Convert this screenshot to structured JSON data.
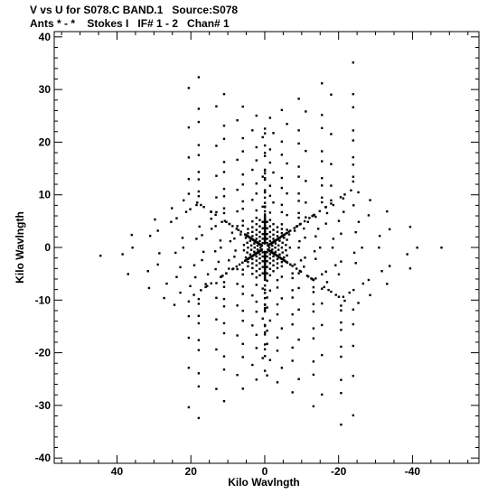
{
  "chart_data": {
    "type": "scatter",
    "title": "V vs U for S078.C BAND.1   Source:S078",
    "subtitle": "Ants * - *    Stokes I   IF# 1 - 2   Chan# 1",
    "xlabel": "Kilo Wavlngth",
    "ylabel": "Kilo Wavlngth",
    "xlim": [
      57,
      -58
    ],
    "ylim": [
      -41,
      41
    ],
    "x_reversed": true,
    "x_ticks": [
      40,
      20,
      0,
      -20,
      -40
    ],
    "x_tick_labels": [
      "40",
      "20",
      "0",
      "-20",
      "-40"
    ],
    "y_ticks": [
      40,
      30,
      20,
      10,
      0,
      -10,
      -20,
      -30,
      -40
    ],
    "y_tick_labels": [
      "40",
      "30",
      "20",
      "10",
      "0",
      "-10",
      "-20",
      "-30",
      "-40"
    ],
    "grid": false,
    "marker": "dot",
    "marker_color": "#000000",
    "pattern": "six-arm star (Y-shaped array uv coverage with conjugate points)",
    "arm_endpoints": [
      {
        "u": 0,
        "v": 24
      },
      {
        "u": 0,
        "v": -24
      },
      {
        "u": 28,
        "v": 38.5
      },
      {
        "u": -27,
        "v": -38.5
      },
      {
        "u": -29,
        "v": 35
      },
      {
        "u": 28,
        "v": -35
      },
      {
        "u": 55,
        "v": 3.5
      },
      {
        "u": -55,
        "v": -3.5
      },
      {
        "u": 50,
        "v": -3
      },
      {
        "u": -50,
        "v": 3
      }
    ]
  }
}
